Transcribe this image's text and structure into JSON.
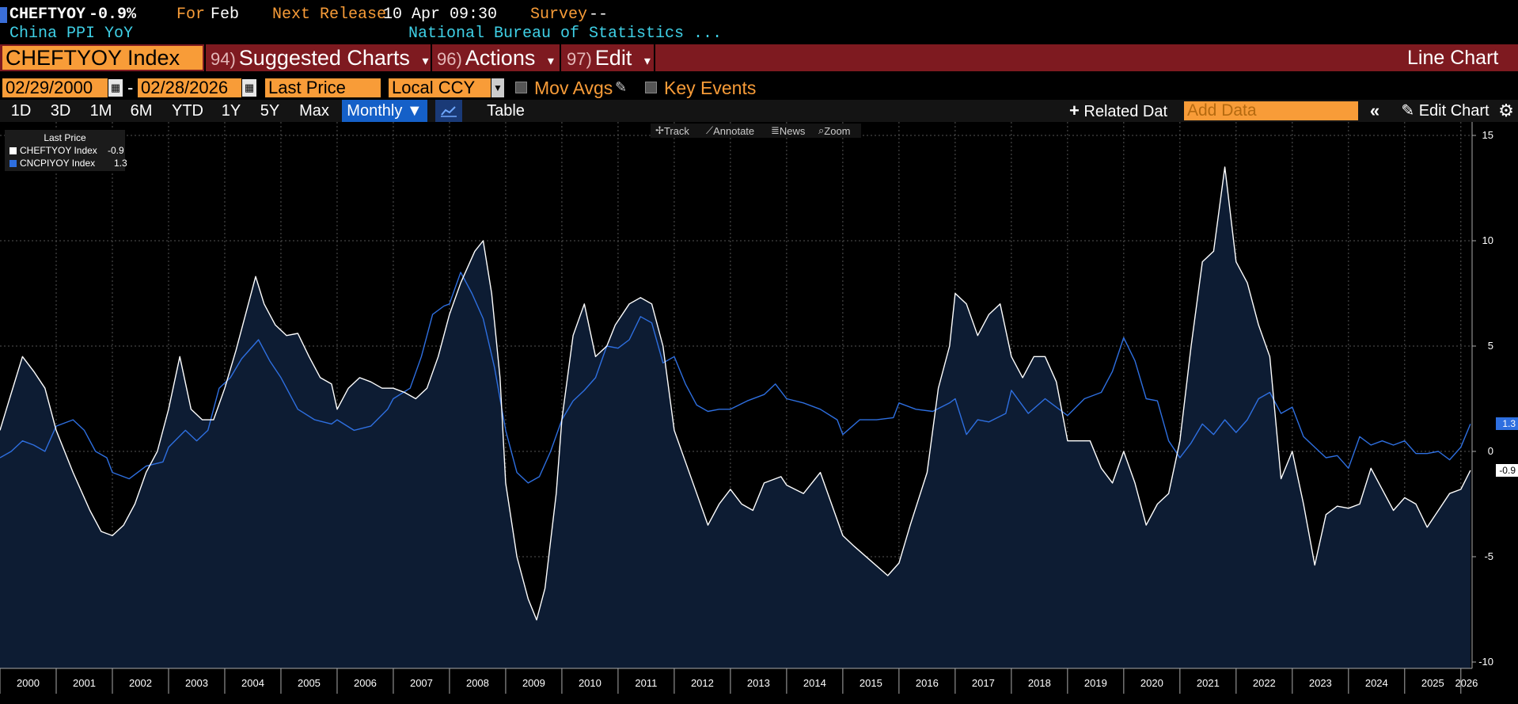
{
  "header": {
    "ticker_short": "CHEFTYOY",
    "last_change": "-0.9%",
    "for_label": "For",
    "for_value": "Feb",
    "next_release_label": "Next Release",
    "next_release_value": "10 Apr 09:30",
    "survey_label": "Survey",
    "survey_value": "--",
    "description": "China PPI YoY",
    "source": "National Bureau of Statistics ..."
  },
  "menubar": {
    "ticker": "CHEFTYOY Index",
    "suggested_num": "94)",
    "suggested": "Suggested Charts",
    "actions_num": "96)",
    "actions": "Actions",
    "edit_num": "97)",
    "edit": "Edit",
    "chart_type": "Line Chart",
    "caret": "▾"
  },
  "controls": {
    "start_date": "02/29/2000",
    "end_date": "02/28/2026",
    "date_dash": "-",
    "field": "Last Price",
    "currency": "Local CCY",
    "mov_avgs": "Mov Avgs",
    "key_events": "Key Events"
  },
  "toolbar": {
    "periods": [
      "1D",
      "3D",
      "1M",
      "6M",
      "YTD",
      "1Y",
      "5Y",
      "Max"
    ],
    "frequency": "Monthly ▼",
    "table": "Table",
    "related": "Related Dat",
    "add_data_placeholder": "Add Data",
    "edit_chart": "Edit Chart"
  },
  "chart_tools": {
    "track": "Track",
    "annotate": "Annotate",
    "news": "News",
    "zoom": "Zoom"
  },
  "legend": {
    "title": "Last Price",
    "series": [
      {
        "name": "CHEFTYOY Index",
        "value": "-0.9",
        "color": "#ffffff"
      },
      {
        "name": "CNCPIYOY Index",
        "value": "1.3",
        "color": "#2e6fe0"
      }
    ]
  },
  "axis_labels": {
    "right_last_blue": "1.3",
    "right_last_white": "-0.9"
  },
  "chart_data": {
    "type": "line",
    "title": "CHEFTYOY Index vs CNCPIYOY Index (Last Price, Monthly)",
    "xlabel": "",
    "ylabel": "",
    "ylim": [
      -10,
      15
    ],
    "yticks": [
      15,
      10,
      5,
      0,
      -5,
      -10
    ],
    "x_range": [
      2000.0,
      2026.2
    ],
    "x_tick_labels": [
      "2000",
      "2001",
      "2002",
      "2003",
      "2004",
      "2005",
      "2006",
      "2007",
      "2008",
      "2009",
      "2010",
      "2011",
      "2012",
      "2013",
      "2014",
      "2015",
      "2016",
      "2017",
      "2018",
      "2019",
      "2020",
      "2021",
      "2022",
      "2023",
      "2024",
      "2025",
      "2026"
    ],
    "series": [
      {
        "name": "CHEFTYOY Index",
        "color": "#ffffff",
        "fill": "#0d1c33",
        "last": -0.9,
        "points": [
          [
            2000.0,
            1.0
          ],
          [
            2000.17,
            2.5
          ],
          [
            2000.4,
            4.5
          ],
          [
            2000.6,
            3.8
          ],
          [
            2000.8,
            3.0
          ],
          [
            2001.0,
            1.0
          ],
          [
            2001.3,
            -1.0
          ],
          [
            2001.6,
            -2.8
          ],
          [
            2001.8,
            -3.8
          ],
          [
            2002.0,
            -4.0
          ],
          [
            2002.2,
            -3.5
          ],
          [
            2002.4,
            -2.5
          ],
          [
            2002.6,
            -1.0
          ],
          [
            2002.8,
            0.0
          ],
          [
            2003.0,
            2.0
          ],
          [
            2003.2,
            4.5
          ],
          [
            2003.4,
            2.0
          ],
          [
            2003.6,
            1.5
          ],
          [
            2003.8,
            1.5
          ],
          [
            2004.0,
            3.0
          ],
          [
            2004.2,
            4.8
          ],
          [
            2004.4,
            6.8
          ],
          [
            2004.55,
            8.3
          ],
          [
            2004.7,
            7.0
          ],
          [
            2004.9,
            6.0
          ],
          [
            2005.1,
            5.5
          ],
          [
            2005.3,
            5.6
          ],
          [
            2005.5,
            4.5
          ],
          [
            2005.7,
            3.5
          ],
          [
            2005.9,
            3.2
          ],
          [
            2006.0,
            2.0
          ],
          [
            2006.2,
            3.0
          ],
          [
            2006.4,
            3.5
          ],
          [
            2006.6,
            3.3
          ],
          [
            2006.8,
            3.0
          ],
          [
            2007.0,
            3.0
          ],
          [
            2007.2,
            2.8
          ],
          [
            2007.4,
            2.5
          ],
          [
            2007.6,
            3.0
          ],
          [
            2007.8,
            4.5
          ],
          [
            2008.0,
            6.5
          ],
          [
            2008.2,
            8.0
          ],
          [
            2008.45,
            9.5
          ],
          [
            2008.6,
            10.0
          ],
          [
            2008.75,
            7.5
          ],
          [
            2008.9,
            3.5
          ],
          [
            2009.0,
            -1.5
          ],
          [
            2009.2,
            -5.0
          ],
          [
            2009.4,
            -7.0
          ],
          [
            2009.55,
            -8.0
          ],
          [
            2009.7,
            -6.5
          ],
          [
            2009.9,
            -2.0
          ],
          [
            2010.0,
            1.5
          ],
          [
            2010.2,
            5.5
          ],
          [
            2010.4,
            7.0
          ],
          [
            2010.6,
            4.5
          ],
          [
            2010.8,
            5.0
          ],
          [
            2010.95,
            6.0
          ],
          [
            2011.2,
            7.0
          ],
          [
            2011.4,
            7.3
          ],
          [
            2011.6,
            7.0
          ],
          [
            2011.8,
            5.0
          ],
          [
            2012.0,
            1.0
          ],
          [
            2012.2,
            -0.5
          ],
          [
            2012.4,
            -2.0
          ],
          [
            2012.6,
            -3.5
          ],
          [
            2012.8,
            -2.5
          ],
          [
            2013.0,
            -1.8
          ],
          [
            2013.2,
            -2.5
          ],
          [
            2013.4,
            -2.8
          ],
          [
            2013.6,
            -1.5
          ],
          [
            2013.9,
            -1.2
          ],
          [
            2014.0,
            -1.6
          ],
          [
            2014.3,
            -2.0
          ],
          [
            2014.6,
            -1.0
          ],
          [
            2014.8,
            -2.5
          ],
          [
            2015.0,
            -4.0
          ],
          [
            2015.2,
            -4.5
          ],
          [
            2015.5,
            -5.2
          ],
          [
            2015.8,
            -5.9
          ],
          [
            2016.0,
            -5.3
          ],
          [
            2016.2,
            -3.5
          ],
          [
            2016.5,
            -1.0
          ],
          [
            2016.7,
            3.0
          ],
          [
            2016.9,
            5.0
          ],
          [
            2017.0,
            7.5
          ],
          [
            2017.2,
            7.0
          ],
          [
            2017.4,
            5.5
          ],
          [
            2017.6,
            6.5
          ],
          [
            2017.8,
            7.0
          ],
          [
            2018.0,
            4.5
          ],
          [
            2018.2,
            3.5
          ],
          [
            2018.4,
            4.5
          ],
          [
            2018.6,
            4.5
          ],
          [
            2018.8,
            3.3
          ],
          [
            2019.0,
            0.5
          ],
          [
            2019.2,
            0.5
          ],
          [
            2019.4,
            0.5
          ],
          [
            2019.6,
            -0.8
          ],
          [
            2019.8,
            -1.5
          ],
          [
            2020.0,
            0.0
          ],
          [
            2020.2,
            -1.5
          ],
          [
            2020.4,
            -3.5
          ],
          [
            2020.6,
            -2.5
          ],
          [
            2020.8,
            -2.0
          ],
          [
            2021.0,
            0.5
          ],
          [
            2021.2,
            5.0
          ],
          [
            2021.4,
            9.0
          ],
          [
            2021.6,
            9.5
          ],
          [
            2021.8,
            13.5
          ],
          [
            2022.0,
            9.0
          ],
          [
            2022.2,
            8.0
          ],
          [
            2022.4,
            6.0
          ],
          [
            2022.6,
            4.5
          ],
          [
            2022.8,
            -1.3
          ],
          [
            2023.0,
            0.0
          ],
          [
            2023.2,
            -2.5
          ],
          [
            2023.4,
            -5.4
          ],
          [
            2023.6,
            -3.0
          ],
          [
            2023.8,
            -2.6
          ],
          [
            2024.0,
            -2.7
          ],
          [
            2024.2,
            -2.5
          ],
          [
            2024.4,
            -0.8
          ],
          [
            2024.6,
            -1.8
          ],
          [
            2024.8,
            -2.8
          ],
          [
            2025.0,
            -2.2
          ],
          [
            2025.2,
            -2.5
          ],
          [
            2025.4,
            -3.6
          ],
          [
            2025.6,
            -2.8
          ],
          [
            2025.8,
            -2.0
          ],
          [
            2026.0,
            -1.8
          ],
          [
            2026.17,
            -0.9
          ]
        ]
      },
      {
        "name": "CNCPIYOY Index",
        "color": "#2e6fe0",
        "last": 1.3,
        "points": [
          [
            2000.0,
            -0.3
          ],
          [
            2000.2,
            0.0
          ],
          [
            2000.4,
            0.5
          ],
          [
            2000.6,
            0.3
          ],
          [
            2000.8,
            0.0
          ],
          [
            2001.0,
            1.2
          ],
          [
            2001.3,
            1.5
          ],
          [
            2001.5,
            1.0
          ],
          [
            2001.7,
            0.0
          ],
          [
            2001.9,
            -0.3
          ],
          [
            2002.0,
            -1.0
          ],
          [
            2002.3,
            -1.3
          ],
          [
            2002.6,
            -0.7
          ],
          [
            2002.9,
            -0.5
          ],
          [
            2003.0,
            0.2
          ],
          [
            2003.3,
            1.0
          ],
          [
            2003.5,
            0.5
          ],
          [
            2003.7,
            1.0
          ],
          [
            2003.9,
            3.0
          ],
          [
            2004.1,
            3.5
          ],
          [
            2004.3,
            4.4
          ],
          [
            2004.6,
            5.3
          ],
          [
            2004.8,
            4.3
          ],
          [
            2005.0,
            3.5
          ],
          [
            2005.3,
            2.0
          ],
          [
            2005.6,
            1.5
          ],
          [
            2005.9,
            1.3
          ],
          [
            2006.0,
            1.5
          ],
          [
            2006.3,
            1.0
          ],
          [
            2006.6,
            1.2
          ],
          [
            2006.9,
            2.0
          ],
          [
            2007.0,
            2.5
          ],
          [
            2007.3,
            3.0
          ],
          [
            2007.5,
            4.5
          ],
          [
            2007.7,
            6.5
          ],
          [
            2007.9,
            6.9
          ],
          [
            2008.0,
            7.0
          ],
          [
            2008.2,
            8.5
          ],
          [
            2008.4,
            7.5
          ],
          [
            2008.6,
            6.3
          ],
          [
            2008.8,
            4.0
          ],
          [
            2009.0,
            1.0
          ],
          [
            2009.2,
            -1.0
          ],
          [
            2009.4,
            -1.5
          ],
          [
            2009.6,
            -1.2
          ],
          [
            2009.8,
            0.0
          ],
          [
            2010.0,
            1.5
          ],
          [
            2010.2,
            2.4
          ],
          [
            2010.4,
            2.9
          ],
          [
            2010.6,
            3.5
          ],
          [
            2010.8,
            5.0
          ],
          [
            2011.0,
            4.9
          ],
          [
            2011.2,
            5.3
          ],
          [
            2011.4,
            6.4
          ],
          [
            2011.6,
            6.1
          ],
          [
            2011.8,
            4.2
          ],
          [
            2012.0,
            4.5
          ],
          [
            2012.2,
            3.2
          ],
          [
            2012.4,
            2.2
          ],
          [
            2012.6,
            1.9
          ],
          [
            2012.8,
            2.0
          ],
          [
            2013.0,
            2.0
          ],
          [
            2013.3,
            2.4
          ],
          [
            2013.6,
            2.7
          ],
          [
            2013.8,
            3.2
          ],
          [
            2014.0,
            2.5
          ],
          [
            2014.3,
            2.3
          ],
          [
            2014.6,
            2.0
          ],
          [
            2014.9,
            1.5
          ],
          [
            2015.0,
            0.8
          ],
          [
            2015.3,
            1.5
          ],
          [
            2015.6,
            1.5
          ],
          [
            2015.9,
            1.6
          ],
          [
            2016.0,
            2.3
          ],
          [
            2016.3,
            2.0
          ],
          [
            2016.6,
            1.9
          ],
          [
            2016.9,
            2.3
          ],
          [
            2017.0,
            2.5
          ],
          [
            2017.2,
            0.8
          ],
          [
            2017.4,
            1.5
          ],
          [
            2017.6,
            1.4
          ],
          [
            2017.9,
            1.8
          ],
          [
            2018.0,
            2.9
          ],
          [
            2018.3,
            1.8
          ],
          [
            2018.6,
            2.5
          ],
          [
            2018.9,
            1.9
          ],
          [
            2019.0,
            1.7
          ],
          [
            2019.3,
            2.5
          ],
          [
            2019.6,
            2.8
          ],
          [
            2019.8,
            3.8
          ],
          [
            2020.0,
            5.4
          ],
          [
            2020.2,
            4.3
          ],
          [
            2020.4,
            2.5
          ],
          [
            2020.6,
            2.4
          ],
          [
            2020.8,
            0.5
          ],
          [
            2021.0,
            -0.3
          ],
          [
            2021.2,
            0.4
          ],
          [
            2021.4,
            1.3
          ],
          [
            2021.6,
            0.8
          ],
          [
            2021.8,
            1.5
          ],
          [
            2022.0,
            0.9
          ],
          [
            2022.2,
            1.5
          ],
          [
            2022.4,
            2.5
          ],
          [
            2022.6,
            2.8
          ],
          [
            2022.8,
            1.8
          ],
          [
            2023.0,
            2.1
          ],
          [
            2023.2,
            0.7
          ],
          [
            2023.4,
            0.2
          ],
          [
            2023.6,
            -0.3
          ],
          [
            2023.8,
            -0.2
          ],
          [
            2024.0,
            -0.8
          ],
          [
            2024.2,
            0.7
          ],
          [
            2024.4,
            0.3
          ],
          [
            2024.6,
            0.5
          ],
          [
            2024.8,
            0.3
          ],
          [
            2025.0,
            0.5
          ],
          [
            2025.2,
            -0.1
          ],
          [
            2025.4,
            -0.1
          ],
          [
            2025.6,
            0.0
          ],
          [
            2025.8,
            -0.4
          ],
          [
            2026.0,
            0.2
          ],
          [
            2026.17,
            1.3
          ]
        ]
      }
    ]
  }
}
